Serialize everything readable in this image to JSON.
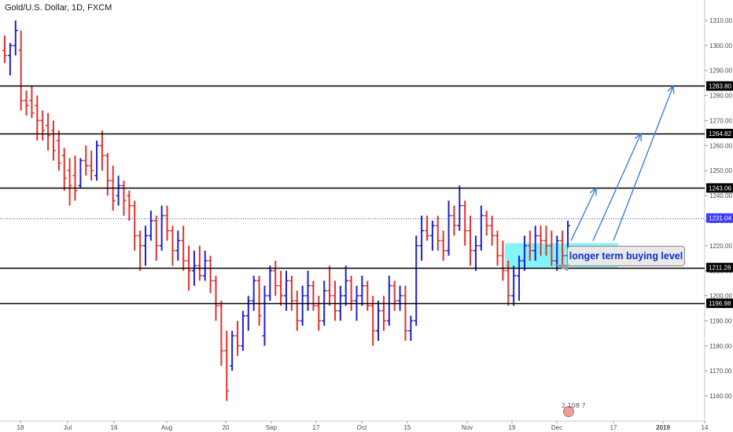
{
  "header": {
    "title": "Gold/U.S. Dollar, 1D, FXCM"
  },
  "annotation": {
    "text": "longer term buying level"
  },
  "watermark": {
    "text": "2 108 7"
  },
  "colors": {
    "up": "#1f1fcf",
    "down": "#e0312e",
    "level_line": "#000000",
    "current_price_line": "#3b3bff",
    "buy_zone_fill": "#6ff2f7",
    "arrow": "#3f7fd6"
  },
  "chart_data": {
    "type": "ohlc",
    "title": "Gold/U.S. Dollar, 1D, FXCM",
    "y_axis": {
      "ylim": [
        1155,
        1316
      ],
      "ticks": [
        1160,
        1170,
        1180,
        1190,
        1200,
        1210,
        1220,
        1230,
        1240,
        1250,
        1260,
        1270,
        1280,
        1290,
        1300,
        1310
      ],
      "tick_labels": [
        "1160.00",
        "1170.00",
        "1180.00",
        "1190.00",
        "1200.00",
        "1210.00",
        "1220.00",
        "1230.00",
        "1240.00",
        "1250.00",
        "1260.00",
        "1270.00",
        "1280.00",
        "1290.00",
        "1300.00",
        "1310.00"
      ]
    },
    "x_axis": {
      "tick_labels": [
        "18",
        "Jul",
        "16",
        "Aug",
        "20",
        "Sep",
        "17",
        "Oct",
        "15",
        "Nov",
        "19",
        "Dec",
        "17",
        "2019",
        "14"
      ]
    },
    "current_price": 1231.04,
    "current_price_label": "1231.04",
    "levels": [
      {
        "value": 1283.8,
        "label": "1283.80"
      },
      {
        "value": 1264.82,
        "label": "1264.82"
      },
      {
        "value": 1243.06,
        "label": "1243.06"
      },
      {
        "value": 1211.28,
        "label": "1211.28"
      },
      {
        "value": 1196.98,
        "label": "1196.98"
      }
    ],
    "buy_zone": {
      "price_low": 1211.3,
      "price_high": 1221.0
    },
    "arrow_targets": [
      1243.06,
      1264.82,
      1283.8
    ],
    "bars": [
      [
        1298,
        1304,
        1293,
        1296
      ],
      [
        1296,
        1301,
        1288,
        1300
      ],
      [
        1300,
        1310,
        1296,
        1306
      ],
      [
        1298,
        1306,
        1274,
        1278
      ],
      [
        1278,
        1282,
        1272,
        1276
      ],
      [
        1278,
        1284,
        1271,
        1273
      ],
      [
        1276,
        1280,
        1262,
        1270
      ],
      [
        1270,
        1274,
        1262,
        1266
      ],
      [
        1268,
        1273,
        1258,
        1264
      ],
      [
        1266,
        1270,
        1254,
        1258
      ],
      [
        1262,
        1266,
        1250,
        1253
      ],
      [
        1256,
        1259,
        1242,
        1247
      ],
      [
        1250,
        1255,
        1236,
        1244
      ],
      [
        1248,
        1256,
        1238,
        1242
      ],
      [
        1244,
        1255,
        1243,
        1254
      ],
      [
        1254,
        1260,
        1248,
        1252
      ],
      [
        1252,
        1258,
        1246,
        1250
      ],
      [
        1248,
        1262,
        1246,
        1260
      ],
      [
        1260,
        1266,
        1250,
        1256
      ],
      [
        1256,
        1257,
        1240,
        1246
      ],
      [
        1246,
        1252,
        1234,
        1238
      ],
      [
        1240,
        1248,
        1236,
        1244
      ],
      [
        1244,
        1246,
        1232,
        1238
      ],
      [
        1240,
        1242,
        1230,
        1236
      ],
      [
        1236,
        1238,
        1218,
        1224
      ],
      [
        1224,
        1226,
        1210,
        1220
      ],
      [
        1220,
        1228,
        1212,
        1224
      ],
      [
        1224,
        1234,
        1222,
        1230
      ],
      [
        1230,
        1232,
        1214,
        1220
      ],
      [
        1220,
        1236,
        1218,
        1232
      ],
      [
        1232,
        1236,
        1222,
        1226
      ],
      [
        1226,
        1228,
        1212,
        1218
      ],
      [
        1218,
        1226,
        1214,
        1222
      ],
      [
        1222,
        1228,
        1210,
        1214
      ],
      [
        1214,
        1220,
        1202,
        1210
      ],
      [
        1210,
        1218,
        1204,
        1212
      ],
      [
        1212,
        1220,
        1206,
        1208
      ],
      [
        1208,
        1218,
        1206,
        1214
      ],
      [
        1214,
        1216,
        1201,
        1206
      ],
      [
        1206,
        1208,
        1190,
        1196
      ],
      [
        1196,
        1198,
        1172,
        1178
      ],
      [
        1178,
        1186,
        1158,
        1162
      ],
      [
        1172,
        1186,
        1170,
        1184
      ],
      [
        1184,
        1190,
        1176,
        1180
      ],
      [
        1180,
        1194,
        1178,
        1192
      ],
      [
        1192,
        1200,
        1186,
        1198
      ],
      [
        1198,
        1208,
        1194,
        1206
      ],
      [
        1206,
        1208,
        1188,
        1192
      ],
      [
        1184,
        1204,
        1180,
        1200
      ],
      [
        1200,
        1212,
        1198,
        1210
      ],
      [
        1210,
        1214,
        1200,
        1204
      ],
      [
        1204,
        1210,
        1196,
        1200
      ],
      [
        1200,
        1210,
        1194,
        1206
      ],
      [
        1206,
        1208,
        1194,
        1198
      ],
      [
        1198,
        1202,
        1186,
        1190
      ],
      [
        1190,
        1204,
        1188,
        1200
      ],
      [
        1200,
        1210,
        1194,
        1204
      ],
      [
        1204,
        1206,
        1194,
        1196
      ],
      [
        1196,
        1200,
        1186,
        1190
      ],
      [
        1190,
        1206,
        1188,
        1202
      ],
      [
        1202,
        1212,
        1196,
        1200
      ],
      [
        1200,
        1206,
        1190,
        1194
      ],
      [
        1194,
        1204,
        1190,
        1200
      ],
      [
        1200,
        1212,
        1196,
        1206
      ],
      [
        1206,
        1208,
        1194,
        1198
      ],
      [
        1198,
        1204,
        1190,
        1200
      ],
      [
        1200,
        1208,
        1196,
        1204
      ],
      [
        1204,
        1206,
        1194,
        1196
      ],
      [
        1196,
        1200,
        1180,
        1186
      ],
      [
        1186,
        1198,
        1182,
        1194
      ],
      [
        1194,
        1200,
        1186,
        1190
      ],
      [
        1190,
        1208,
        1188,
        1204
      ],
      [
        1204,
        1206,
        1194,
        1198
      ],
      [
        1198,
        1204,
        1194,
        1200
      ],
      [
        1200,
        1204,
        1182,
        1186
      ],
      [
        1186,
        1192,
        1182,
        1190
      ],
      [
        1190,
        1224,
        1188,
        1220
      ],
      [
        1220,
        1232,
        1214,
        1226
      ],
      [
        1226,
        1232,
        1222,
        1224
      ],
      [
        1224,
        1230,
        1218,
        1228
      ],
      [
        1228,
        1232,
        1218,
        1222
      ],
      [
        1222,
        1226,
        1214,
        1218
      ],
      [
        1218,
        1238,
        1216,
        1232
      ],
      [
        1232,
        1236,
        1224,
        1228
      ],
      [
        1228,
        1244,
        1226,
        1236
      ],
      [
        1236,
        1238,
        1220,
        1226
      ],
      [
        1226,
        1232,
        1212,
        1218
      ],
      [
        1218,
        1224,
        1210,
        1220
      ],
      [
        1220,
        1236,
        1218,
        1232
      ],
      [
        1232,
        1234,
        1224,
        1228
      ],
      [
        1228,
        1232,
        1220,
        1224
      ],
      [
        1224,
        1226,
        1212,
        1216
      ],
      [
        1216,
        1222,
        1206,
        1210
      ],
      [
        1210,
        1214,
        1196,
        1200
      ],
      [
        1200,
        1212,
        1196,
        1208
      ],
      [
        1208,
        1216,
        1198,
        1214
      ],
      [
        1214,
        1224,
        1210,
        1220
      ],
      [
        1220,
        1226,
        1214,
        1218
      ],
      [
        1218,
        1228,
        1214,
        1224
      ],
      [
        1224,
        1228,
        1216,
        1222
      ],
      [
        1222,
        1228,
        1216,
        1220
      ],
      [
        1220,
        1226,
        1212,
        1214
      ],
      [
        1214,
        1224,
        1210,
        1222
      ],
      [
        1222,
        1226,
        1212,
        1216
      ],
      [
        1216,
        1230,
        1214,
        1228
      ]
    ]
  }
}
